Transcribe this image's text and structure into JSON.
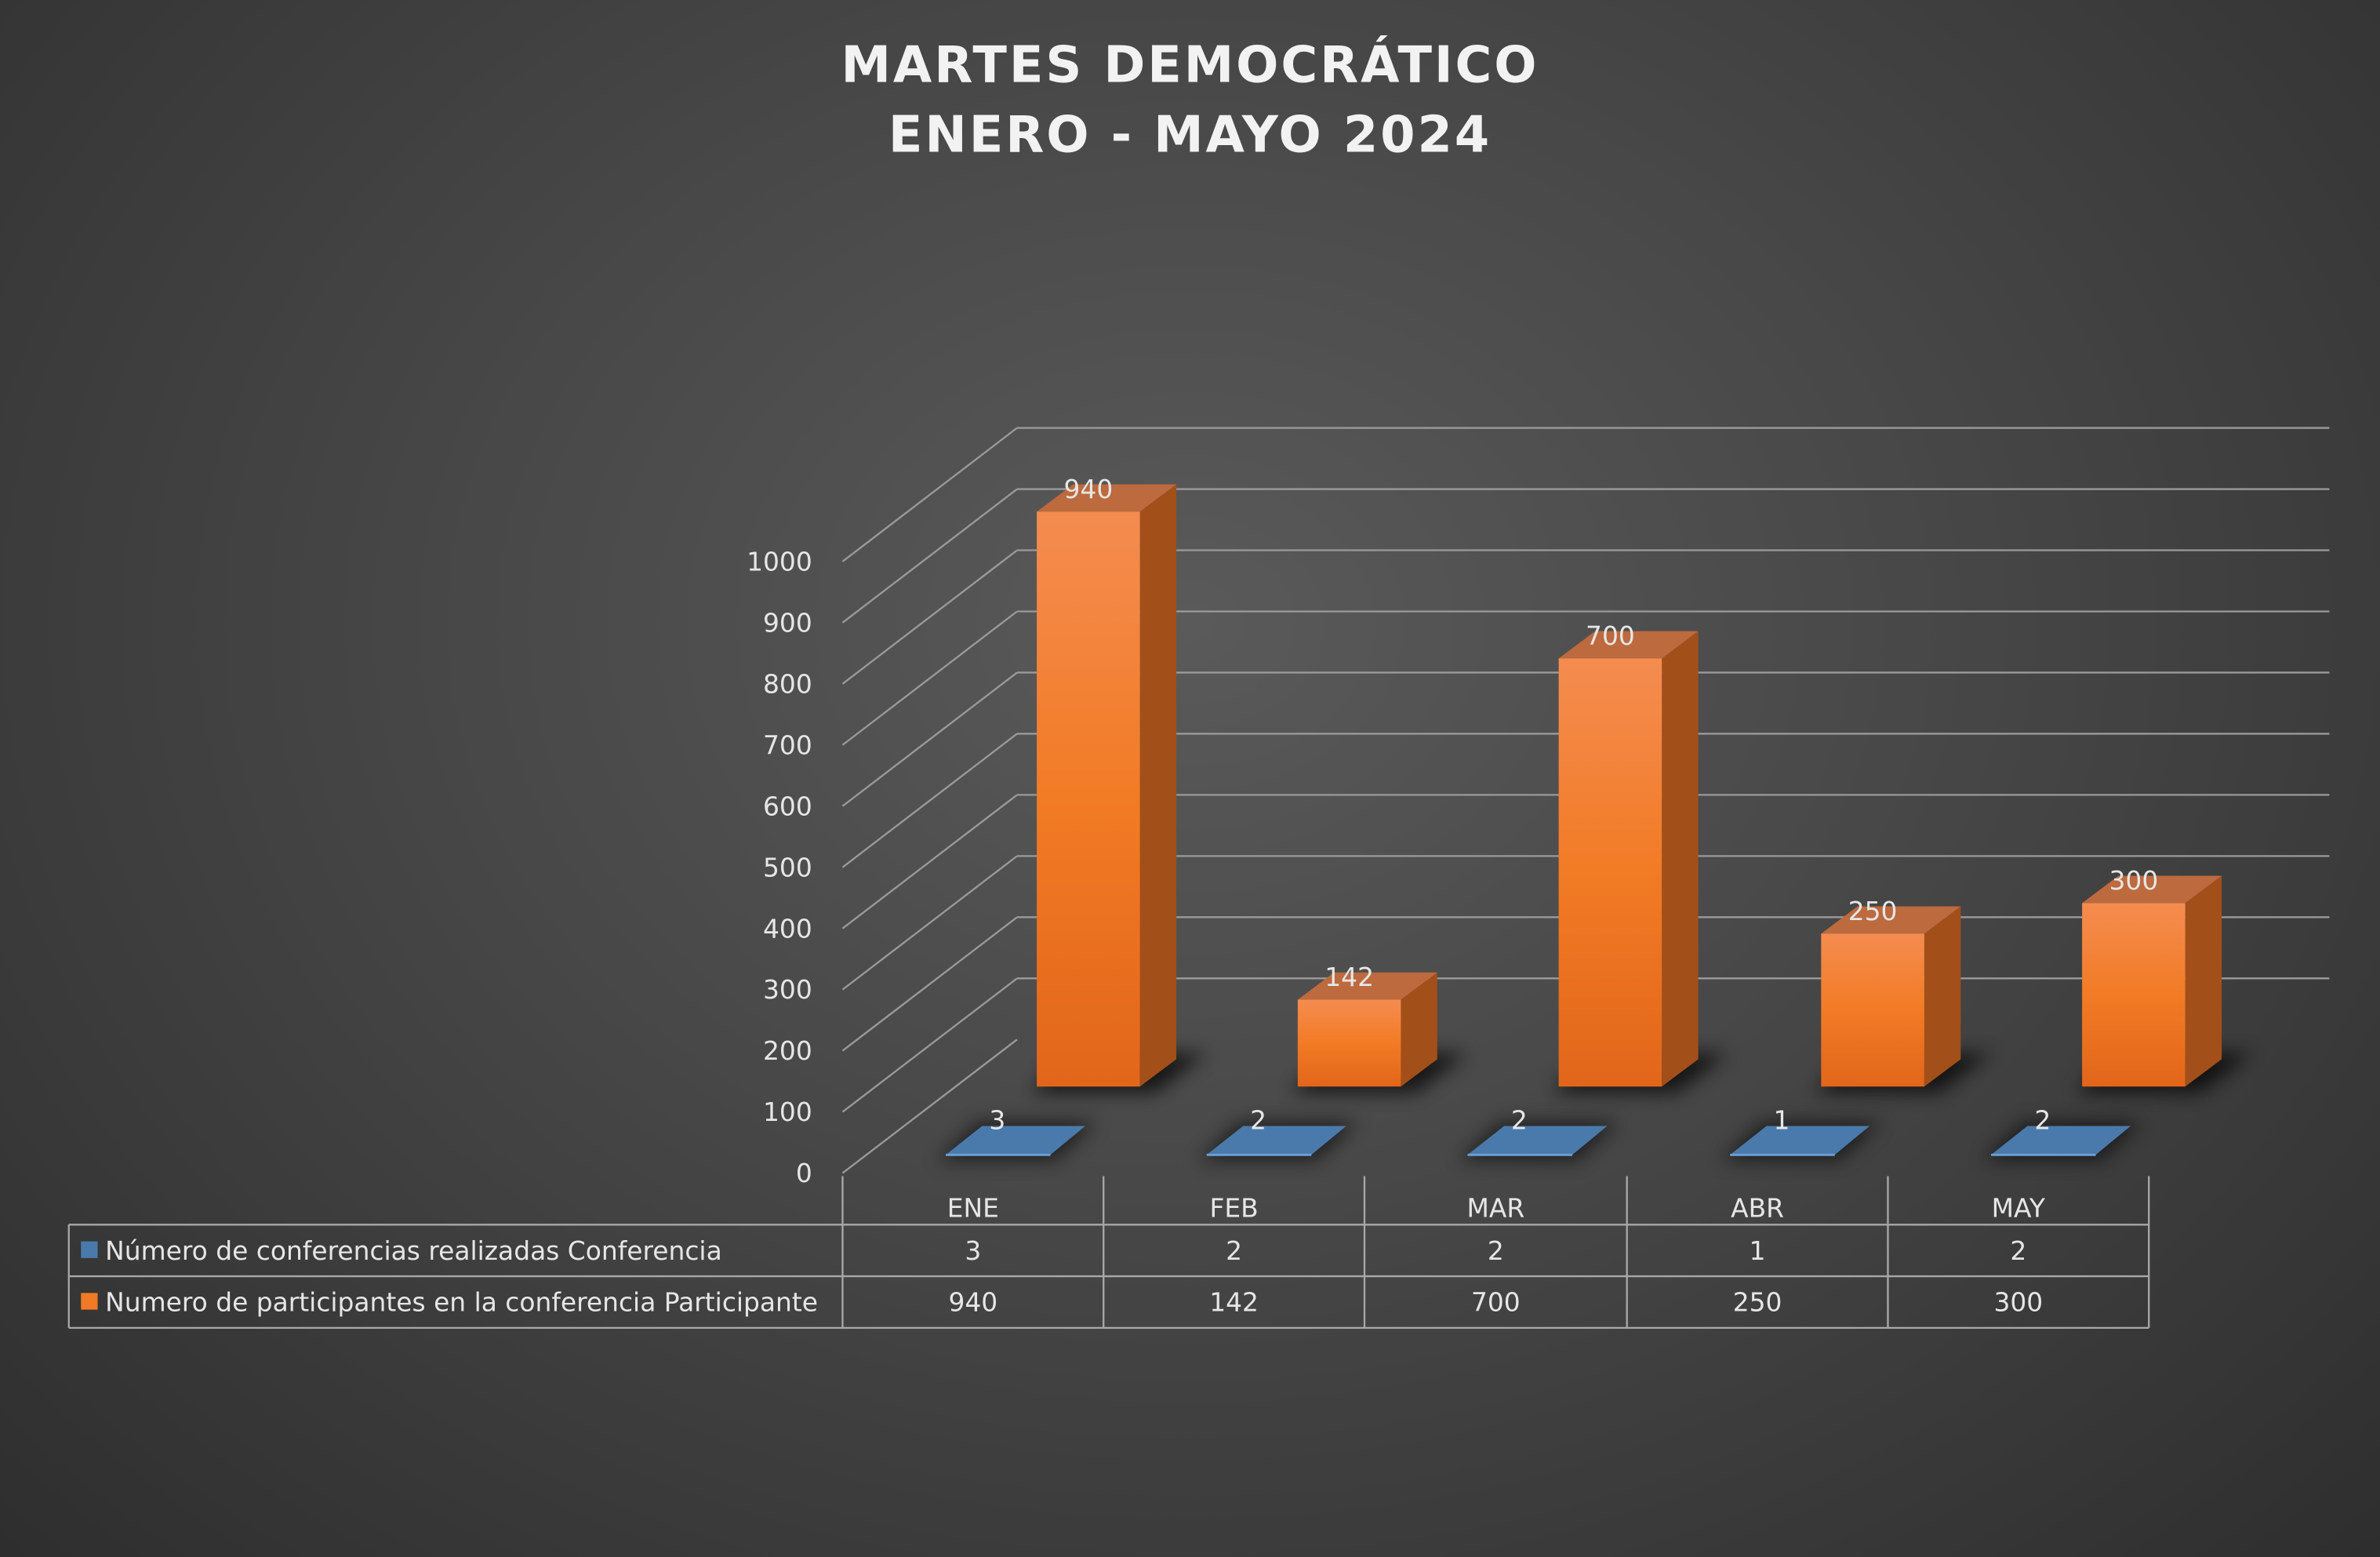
{
  "chart_data": {
    "type": "bar",
    "variant": "3d-column-with-data-table",
    "title": [
      "MARTES DEMOCRÁTICO",
      "ENERO - MAYO 2024"
    ],
    "categories": [
      "ENE",
      "FEB",
      "MAR",
      "ABR",
      "MAY"
    ],
    "series": [
      {
        "name": "Número de conferencias realizadas Conferencia",
        "color": "#4a7aab",
        "values": [
          3,
          2,
          2,
          1,
          2
        ]
      },
      {
        "name": "Numero de participantes en la conferencia Participante",
        "color": "#f07a25",
        "values": [
          940,
          142,
          700,
          250,
          300
        ]
      }
    ],
    "yticks": [
      0,
      100,
      200,
      300,
      400,
      500,
      600,
      700,
      800,
      900,
      1000
    ],
    "ylim": [
      0,
      1000
    ],
    "grid": true,
    "legend": "data-table-bottom"
  }
}
